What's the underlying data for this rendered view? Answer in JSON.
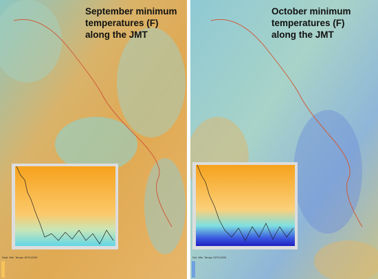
{
  "panels": [
    {
      "title": "September minimum temperatures (F) along the JMT",
      "legend_title": "Sept. Min. Temps 1970-2000"
    },
    {
      "title": "October minimum temperatures (F) along the JMT",
      "legend_title": "Oct. Min. Temps 1970-2000"
    }
  ]
}
